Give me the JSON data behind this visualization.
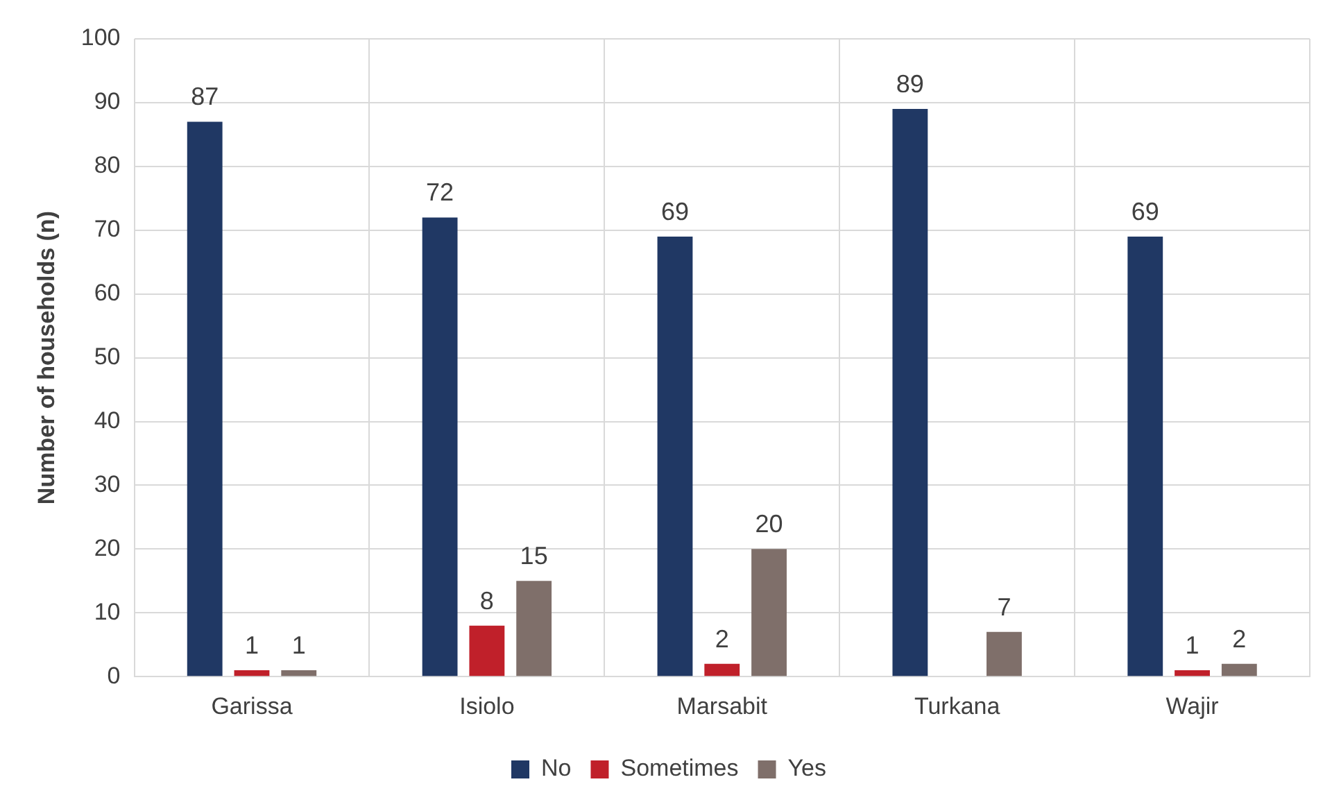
{
  "chart_data": {
    "type": "bar",
    "ylabel": "Number of households (n)",
    "categories": [
      "Garissa",
      "Isiolo",
      "Marsabit",
      "Turkana",
      "Wajir"
    ],
    "series": [
      {
        "name": "No",
        "color": "#203864",
        "values": [
          87,
          72,
          69,
          89,
          69
        ]
      },
      {
        "name": "Sometimes",
        "color": "#c0202a",
        "values": [
          1,
          8,
          2,
          null,
          1
        ]
      },
      {
        "name": "Yes",
        "color": "#7f6f6a",
        "values": [
          1,
          15,
          20,
          7,
          2
        ]
      }
    ],
    "ylim": [
      0,
      100
    ],
    "yticks": [
      0,
      10,
      20,
      30,
      40,
      50,
      60,
      70,
      80,
      90,
      100
    ],
    "grid": true,
    "legend": "bottom",
    "data_labels": true
  }
}
